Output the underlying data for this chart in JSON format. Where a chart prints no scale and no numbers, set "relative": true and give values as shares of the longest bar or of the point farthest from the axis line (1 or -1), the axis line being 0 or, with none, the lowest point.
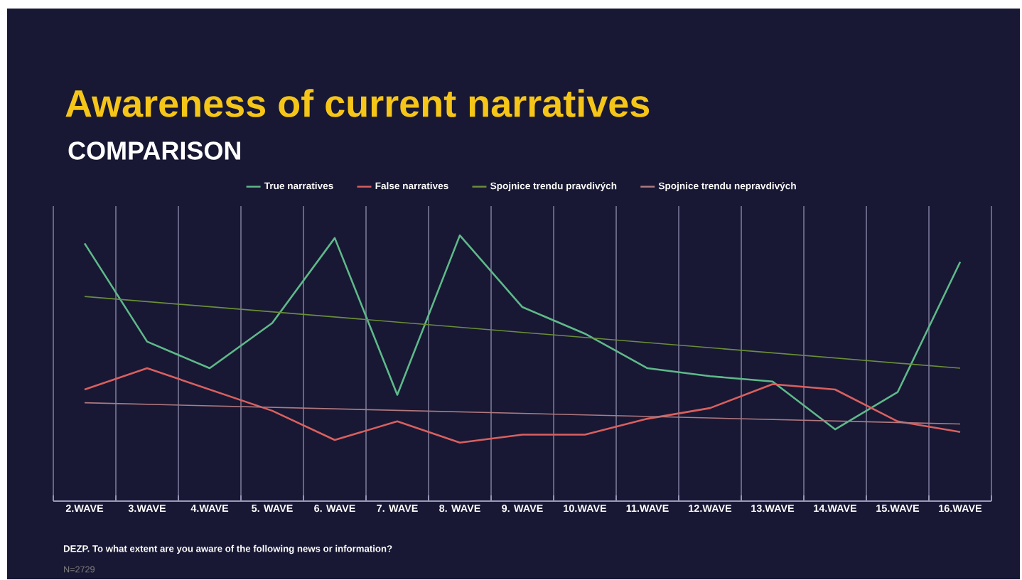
{
  "chart_data": {
    "type": "line",
    "title": "Awareness of current narratives",
    "subtitle": "COMPARISON",
    "categories": [
      "2.WAVE",
      "3.WAVE",
      "4.WAVE",
      "5. WAVE",
      "6. WAVE",
      "7. WAVE",
      "8. WAVE",
      "9. WAVE",
      "10.WAVE",
      "11.WAVE",
      "12.WAVE",
      "13.WAVE",
      "14.WAVE",
      "15.WAVE",
      "16.WAVE"
    ],
    "relative": true,
    "series": [
      {
        "name": "True narratives",
        "color": "#5fb98a",
        "values": [
          0.97,
          0.6,
          0.5,
          0.67,
          0.99,
          0.4,
          1.0,
          0.73,
          0.63,
          0.5,
          0.47,
          0.45,
          0.27,
          0.41,
          0.9
        ]
      },
      {
        "name": "False narratives",
        "color": "#d9605f",
        "values": [
          0.42,
          0.5,
          0.42,
          0.34,
          0.23,
          0.3,
          0.22,
          0.25,
          0.25,
          0.31,
          0.35,
          0.44,
          0.42,
          0.3,
          0.26
        ]
      },
      {
        "name": "Spojnice trendu pravdivých",
        "color": "#6b8e3a",
        "values": [
          0.77,
          null,
          null,
          null,
          null,
          null,
          null,
          null,
          null,
          null,
          null,
          null,
          null,
          null,
          0.5
        ]
      },
      {
        "name": "Spojnice trendu nepravdivých",
        "color": "#b07a80",
        "values": [
          0.37,
          null,
          null,
          null,
          null,
          null,
          null,
          null,
          null,
          null,
          null,
          null,
          null,
          null,
          0.29
        ]
      }
    ],
    "grid": "x",
    "legend": "top",
    "marker": "none",
    "line_style": "solid",
    "annotations": [
      "DEZP. To what extent are you aware of the following news or information?",
      "N=2729"
    ]
  }
}
